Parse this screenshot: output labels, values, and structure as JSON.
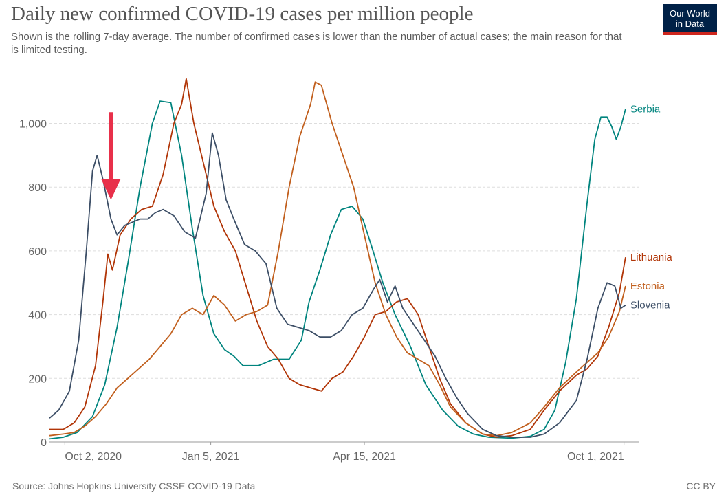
{
  "title": "Daily new confirmed COVID-19 cases per million people",
  "subtitle": "Shown is the rolling 7-day average. The number of confirmed cases is lower than the number of actual cases; the main reason for that is limited testing.",
  "logo": {
    "line1": "Our World",
    "line2": "in Data"
  },
  "source": "Source: Johns Hopkins University CSSE COVID-19 Data",
  "license": "CC BY",
  "colors": {
    "serbia": "#00847e",
    "lithuania": "#b13507",
    "estonia": "#c15f1d",
    "slovenia": "#3c4e66",
    "arrow": "#e8304a",
    "grid": "#dddddd"
  },
  "chart_data": {
    "type": "line",
    "xlabel": "",
    "ylabel": "",
    "x_range": [
      "2020-09-22",
      "2021-10-11"
    ],
    "ylim": [
      0,
      1150
    ],
    "y_ticks": [
      0,
      200,
      400,
      600,
      800,
      1000
    ],
    "y_tick_labels": [
      "0",
      "200",
      "400",
      "600",
      "800",
      "1,000"
    ],
    "x_ticks": [
      {
        "date": "2020-10-02",
        "label": "Oct 2, 2020"
      },
      {
        "date": "2021-01-05",
        "label": "Jan 5, 2021"
      },
      {
        "date": "2021-04-15",
        "label": "Apr 15, 2021"
      },
      {
        "date": "2021-10-01",
        "label": "Oct 1, 2021"
      }
    ],
    "grid": "horizontal dashed",
    "annotation": {
      "type": "arrow",
      "pointing": "down",
      "date": "2020-11-01",
      "from_value": 1035,
      "to_value": 760
    },
    "series": [
      {
        "name": "Serbia",
        "color": "#00847e",
        "points": [
          [
            "2020-09-22",
            10
          ],
          [
            "2020-10-01",
            15
          ],
          [
            "2020-10-10",
            30
          ],
          [
            "2020-10-20",
            80
          ],
          [
            "2020-10-28",
            180
          ],
          [
            "2020-11-05",
            360
          ],
          [
            "2020-11-12",
            560
          ],
          [
            "2020-11-20",
            800
          ],
          [
            "2020-11-28",
            1000
          ],
          [
            "2020-12-03",
            1070
          ],
          [
            "2020-12-10",
            1065
          ],
          [
            "2020-12-17",
            900
          ],
          [
            "2020-12-24",
            670
          ],
          [
            "2020-12-31",
            460
          ],
          [
            "2021-01-07",
            340
          ],
          [
            "2021-01-14",
            290
          ],
          [
            "2021-01-20",
            270
          ],
          [
            "2021-01-26",
            240
          ],
          [
            "2021-02-05",
            240
          ],
          [
            "2021-02-15",
            260
          ],
          [
            "2021-02-25",
            260
          ],
          [
            "2021-03-05",
            320
          ],
          [
            "2021-03-10",
            440
          ],
          [
            "2021-03-17",
            540
          ],
          [
            "2021-03-24",
            650
          ],
          [
            "2021-03-31",
            730
          ],
          [
            "2021-04-07",
            740
          ],
          [
            "2021-04-14",
            700
          ],
          [
            "2021-04-20",
            610
          ],
          [
            "2021-04-27",
            500
          ],
          [
            "2021-05-05",
            400
          ],
          [
            "2021-05-15",
            300
          ],
          [
            "2021-05-25",
            180
          ],
          [
            "2021-06-05",
            100
          ],
          [
            "2021-06-15",
            50
          ],
          [
            "2021-06-25",
            25
          ],
          [
            "2021-07-05",
            15
          ],
          [
            "2021-07-20",
            12
          ],
          [
            "2021-08-01",
            18
          ],
          [
            "2021-08-10",
            40
          ],
          [
            "2021-08-17",
            100
          ],
          [
            "2021-08-24",
            250
          ],
          [
            "2021-08-31",
            450
          ],
          [
            "2021-09-07",
            750
          ],
          [
            "2021-09-12",
            950
          ],
          [
            "2021-09-16",
            1020
          ],
          [
            "2021-09-20",
            1020
          ],
          [
            "2021-09-23",
            990
          ],
          [
            "2021-09-26",
            950
          ],
          [
            "2021-09-29",
            990
          ],
          [
            "2021-10-02",
            1045
          ]
        ]
      },
      {
        "name": "Lithuania",
        "color": "#b13507",
        "points": [
          [
            "2020-09-22",
            40
          ],
          [
            "2020-10-01",
            40
          ],
          [
            "2020-10-08",
            60
          ],
          [
            "2020-10-15",
            110
          ],
          [
            "2020-10-22",
            240
          ],
          [
            "2020-10-27",
            450
          ],
          [
            "2020-10-30",
            590
          ],
          [
            "2020-11-02",
            540
          ],
          [
            "2020-11-07",
            650
          ],
          [
            "2020-11-14",
            700
          ],
          [
            "2020-11-21",
            730
          ],
          [
            "2020-11-28",
            740
          ],
          [
            "2020-12-05",
            840
          ],
          [
            "2020-12-12",
            1000
          ],
          [
            "2020-12-17",
            1060
          ],
          [
            "2020-12-20",
            1140
          ],
          [
            "2020-12-25",
            1000
          ],
          [
            "2020-12-31",
            880
          ],
          [
            "2021-01-07",
            740
          ],
          [
            "2021-01-14",
            660
          ],
          [
            "2021-01-21",
            600
          ],
          [
            "2021-01-28",
            490
          ],
          [
            "2021-02-04",
            380
          ],
          [
            "2021-02-11",
            300
          ],
          [
            "2021-02-18",
            260
          ],
          [
            "2021-02-25",
            200
          ],
          [
            "2021-03-04",
            180
          ],
          [
            "2021-03-11",
            170
          ],
          [
            "2021-03-18",
            160
          ],
          [
            "2021-03-25",
            200
          ],
          [
            "2021-04-01",
            220
          ],
          [
            "2021-04-08",
            270
          ],
          [
            "2021-04-15",
            330
          ],
          [
            "2021-04-22",
            400
          ],
          [
            "2021-04-29",
            410
          ],
          [
            "2021-05-06",
            440
          ],
          [
            "2021-05-13",
            450
          ],
          [
            "2021-05-20",
            400
          ],
          [
            "2021-05-27",
            300
          ],
          [
            "2021-06-03",
            200
          ],
          [
            "2021-06-10",
            120
          ],
          [
            "2021-06-20",
            60
          ],
          [
            "2021-07-01",
            25
          ],
          [
            "2021-07-10",
            15
          ],
          [
            "2021-07-20",
            20
          ],
          [
            "2021-08-01",
            40
          ],
          [
            "2021-08-10",
            100
          ],
          [
            "2021-08-20",
            160
          ],
          [
            "2021-08-31",
            210
          ],
          [
            "2021-09-07",
            230
          ],
          [
            "2021-09-14",
            270
          ],
          [
            "2021-09-21",
            360
          ],
          [
            "2021-09-28",
            470
          ],
          [
            "2021-10-02",
            580
          ]
        ]
      },
      {
        "name": "Estonia",
        "color": "#c15f1d",
        "points": [
          [
            "2020-09-22",
            20
          ],
          [
            "2020-10-01",
            25
          ],
          [
            "2020-10-08",
            30
          ],
          [
            "2020-10-15",
            50
          ],
          [
            "2020-10-22",
            80
          ],
          [
            "2020-10-29",
            120
          ],
          [
            "2020-11-05",
            170
          ],
          [
            "2020-11-12",
            200
          ],
          [
            "2020-11-19",
            230
          ],
          [
            "2020-11-26",
            260
          ],
          [
            "2020-12-03",
            300
          ],
          [
            "2020-12-10",
            340
          ],
          [
            "2020-12-17",
            400
          ],
          [
            "2020-12-24",
            420
          ],
          [
            "2020-12-31",
            400
          ],
          [
            "2021-01-07",
            460
          ],
          [
            "2021-01-14",
            430
          ],
          [
            "2021-01-21",
            380
          ],
          [
            "2021-01-28",
            400
          ],
          [
            "2021-02-04",
            410
          ],
          [
            "2021-02-11",
            430
          ],
          [
            "2021-02-18",
            600
          ],
          [
            "2021-02-25",
            800
          ],
          [
            "2021-03-04",
            960
          ],
          [
            "2021-03-11",
            1060
          ],
          [
            "2021-03-14",
            1130
          ],
          [
            "2021-03-18",
            1120
          ],
          [
            "2021-03-25",
            1000
          ],
          [
            "2021-04-01",
            900
          ],
          [
            "2021-04-08",
            800
          ],
          [
            "2021-04-15",
            650
          ],
          [
            "2021-04-22",
            500
          ],
          [
            "2021-04-29",
            400
          ],
          [
            "2021-05-06",
            330
          ],
          [
            "2021-05-13",
            280
          ],
          [
            "2021-05-20",
            260
          ],
          [
            "2021-05-27",
            240
          ],
          [
            "2021-06-03",
            180
          ],
          [
            "2021-06-10",
            110
          ],
          [
            "2021-06-20",
            60
          ],
          [
            "2021-07-01",
            25
          ],
          [
            "2021-07-10",
            20
          ],
          [
            "2021-07-20",
            30
          ],
          [
            "2021-08-01",
            60
          ],
          [
            "2021-08-10",
            110
          ],
          [
            "2021-08-20",
            170
          ],
          [
            "2021-08-31",
            220
          ],
          [
            "2021-09-07",
            250
          ],
          [
            "2021-09-14",
            280
          ],
          [
            "2021-09-21",
            330
          ],
          [
            "2021-09-28",
            410
          ],
          [
            "2021-10-02",
            490
          ]
        ]
      },
      {
        "name": "Slovenia",
        "color": "#3c4e66",
        "points": [
          [
            "2020-09-22",
            75
          ],
          [
            "2020-09-28",
            100
          ],
          [
            "2020-10-05",
            160
          ],
          [
            "2020-10-11",
            320
          ],
          [
            "2020-10-16",
            600
          ],
          [
            "2020-10-20",
            850
          ],
          [
            "2020-10-23",
            900
          ],
          [
            "2020-10-27",
            820
          ],
          [
            "2020-11-01",
            700
          ],
          [
            "2020-11-05",
            650
          ],
          [
            "2020-11-10",
            680
          ],
          [
            "2020-11-15",
            690
          ],
          [
            "2020-11-20",
            700
          ],
          [
            "2020-11-25",
            700
          ],
          [
            "2020-11-30",
            720
          ],
          [
            "2020-12-05",
            730
          ],
          [
            "2020-12-12",
            710
          ],
          [
            "2020-12-19",
            660
          ],
          [
            "2020-12-26",
            640
          ],
          [
            "2021-01-02",
            780
          ],
          [
            "2021-01-06",
            970
          ],
          [
            "2021-01-10",
            900
          ],
          [
            "2021-01-15",
            760
          ],
          [
            "2021-01-20",
            700
          ],
          [
            "2021-01-27",
            620
          ],
          [
            "2021-02-03",
            600
          ],
          [
            "2021-02-10",
            560
          ],
          [
            "2021-02-17",
            420
          ],
          [
            "2021-02-24",
            370
          ],
          [
            "2021-03-03",
            360
          ],
          [
            "2021-03-10",
            350
          ],
          [
            "2021-03-17",
            330
          ],
          [
            "2021-03-24",
            330
          ],
          [
            "2021-03-31",
            350
          ],
          [
            "2021-04-07",
            400
          ],
          [
            "2021-04-14",
            420
          ],
          [
            "2021-04-21",
            480
          ],
          [
            "2021-04-25",
            510
          ],
          [
            "2021-04-30",
            440
          ],
          [
            "2021-05-05",
            490
          ],
          [
            "2021-05-10",
            420
          ],
          [
            "2021-05-17",
            370
          ],
          [
            "2021-05-24",
            320
          ],
          [
            "2021-05-31",
            270
          ],
          [
            "2021-06-07",
            200
          ],
          [
            "2021-06-14",
            140
          ],
          [
            "2021-06-21",
            90
          ],
          [
            "2021-07-01",
            40
          ],
          [
            "2021-07-10",
            20
          ],
          [
            "2021-07-20",
            15
          ],
          [
            "2021-08-01",
            15
          ],
          [
            "2021-08-10",
            25
          ],
          [
            "2021-08-20",
            60
          ],
          [
            "2021-08-31",
            130
          ],
          [
            "2021-09-07",
            260
          ],
          [
            "2021-09-14",
            420
          ],
          [
            "2021-09-20",
            500
          ],
          [
            "2021-09-25",
            490
          ],
          [
            "2021-09-29",
            420
          ],
          [
            "2021-10-02",
            430
          ]
        ]
      }
    ]
  }
}
